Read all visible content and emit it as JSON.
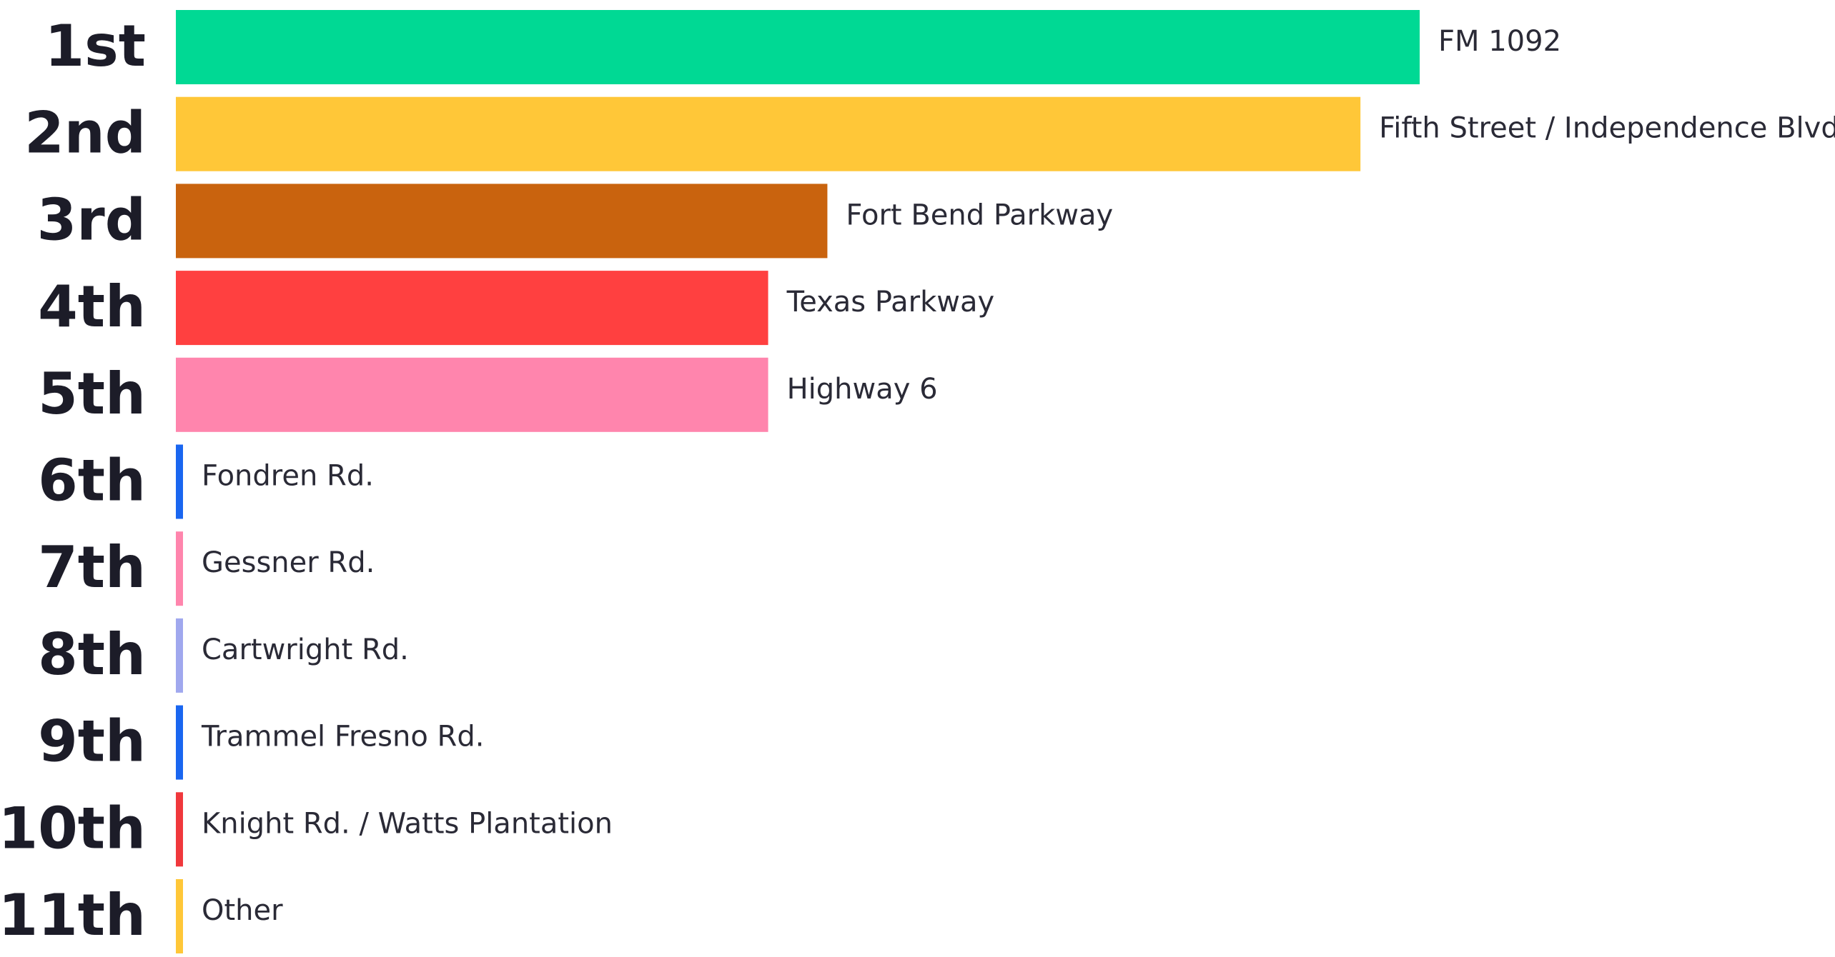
{
  "chart_data": {
    "type": "bar",
    "categories": [
      "1st",
      "2nd",
      "3rd",
      "4th",
      "5th",
      "6th",
      "7th",
      "8th",
      "9th",
      "10th",
      "11th"
    ],
    "labels": [
      "FM 1092",
      "Fifth Street / Independence Blvd.",
      "Fort Bend Parkway",
      "Texas Parkway",
      "Highway 6",
      "Fondren Rd.",
      "Gessner Rd.",
      "Cartwright Rd.",
      "Trammel Fresno Rd.",
      "Knight Rd. / Watts Plantation",
      "Other"
    ],
    "values": [
      21,
      20,
      11,
      10,
      10,
      0,
      0,
      0,
      0,
      0,
      0
    ],
    "colors": [
      "#00d994",
      "#ffc738",
      "#c9630e",
      "#ff4040",
      "#ff85ad",
      "#1a66f0",
      "#ff85ad",
      "#a0a8ee",
      "#1a66f0",
      "#f0383c",
      "#ffc738"
    ]
  }
}
